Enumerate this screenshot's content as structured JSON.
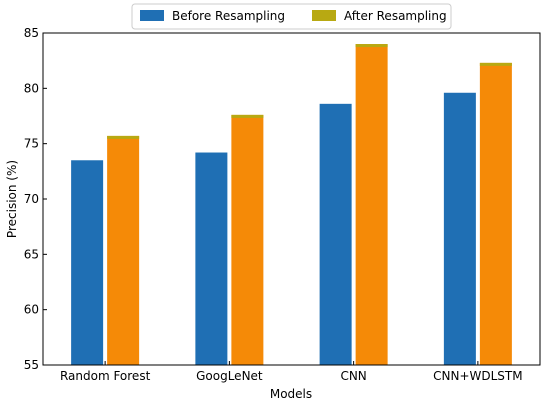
{
  "chart_data": {
    "type": "bar",
    "xlabel": "Models",
    "ylabel": "Precision (%)",
    "ylim": [
      55,
      85
    ],
    "yticks": [
      55,
      60,
      65,
      70,
      75,
      80,
      85
    ],
    "categories": [
      "Random Forest",
      "GoogLeNet",
      "CNN",
      "CNN+WDLSTM"
    ],
    "series": [
      {
        "name": "Before Resampling",
        "values": [
          73.5,
          74.2,
          78.6,
          79.6
        ],
        "color": "#1f6fb4"
      },
      {
        "name": "After Resampling",
        "values": [
          75.7,
          77.6,
          84.0,
          82.3
        ],
        "color": "#f58a07",
        "cap_color": "#b8a912"
      }
    ],
    "legend_position": "top-center",
    "grid": false
  }
}
